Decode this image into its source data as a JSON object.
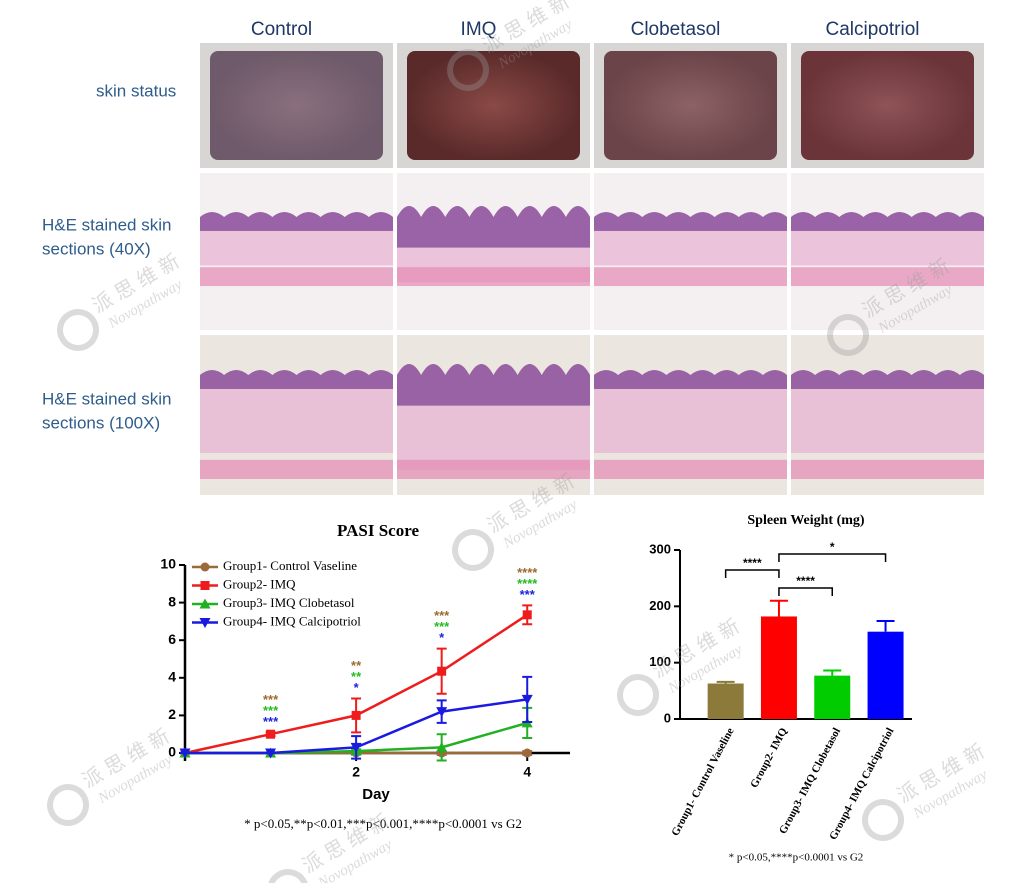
{
  "panels": {
    "columns": [
      "Control",
      "IMQ",
      "Clobetasol",
      "Calcipotriol"
    ],
    "rows": [
      [
        "skin status"
      ],
      [
        "H&E stained skin",
        "sections (40X)"
      ],
      [
        "H&E stained skin",
        "sections (100X)"
      ]
    ]
  },
  "watermark": {
    "cn": "派 思 维 新",
    "en": "Novopathway"
  },
  "chart_data": [
    {
      "type": "line",
      "title": "PASI Score",
      "x_label": "Day",
      "x": [
        0,
        1,
        2,
        3,
        4
      ],
      "xlim": [
        0,
        4.5
      ],
      "xticks": [
        2,
        4
      ],
      "ylim": [
        0,
        10
      ],
      "yticks": [
        0,
        2,
        4,
        6,
        8,
        10
      ],
      "series": [
        {
          "name": "Group1- Control Vaseline",
          "color": "#9c6a3a",
          "marker": "circle",
          "values": [
            0,
            0,
            0,
            0,
            0
          ],
          "errors": [
            0,
            0,
            0.05,
            0.1,
            0.1
          ]
        },
        {
          "name": "Group2- IMQ",
          "color": "#ee1c1c",
          "marker": "square",
          "values": [
            0,
            1.0,
            2.0,
            4.35,
            7.35
          ],
          "errors": [
            0,
            0.1,
            0.9,
            1.2,
            0.5
          ]
        },
        {
          "name": "Group3- IMQ Clobetasol",
          "color": "#22b022",
          "marker": "triangle-up",
          "values": [
            0,
            0,
            0.1,
            0.3,
            1.6
          ],
          "errors": [
            0,
            0,
            0.1,
            0.7,
            0.8
          ]
        },
        {
          "name": "Group4- IMQ  Calcipotriol",
          "color": "#1a1ae0",
          "marker": "triangle-down",
          "values": [
            0,
            0,
            0.3,
            2.2,
            2.85
          ],
          "errors": [
            0,
            0,
            0.6,
            0.6,
            1.2
          ]
        }
      ],
      "annotations": [
        {
          "x": 1,
          "labels": [
            {
              "text": "***",
              "color": "#9c6a2e"
            },
            {
              "text": "***",
              "color": "#22bb22"
            },
            {
              "text": "***",
              "color": "#2222dd"
            }
          ]
        },
        {
          "x": 2,
          "labels": [
            {
              "text": "**",
              "color": "#9c6a2e"
            },
            {
              "text": "**",
              "color": "#22bb22"
            },
            {
              "text": "*",
              "color": "#2222dd"
            }
          ]
        },
        {
          "x": 3,
          "labels": [
            {
              "text": "***",
              "color": "#9c6a2e"
            },
            {
              "text": "***",
              "color": "#22bb22"
            },
            {
              "text": "*",
              "color": "#2222dd"
            }
          ]
        },
        {
          "x": 4,
          "labels": [
            {
              "text": "****",
              "color": "#9c6a2e"
            },
            {
              "text": "****",
              "color": "#22bb22"
            },
            {
              "text": "***",
              "color": "#2222dd"
            }
          ]
        }
      ],
      "footnote": "* p<0.05,**p<0.01,***p<0.001,****p<0.0001 vs G2"
    },
    {
      "type": "bar",
      "title": "Spleen Weight (mg)",
      "categories": [
        "Group1- Control Vaseline",
        "Group2- IMQ",
        "Group3- IMQ Clobetasol",
        "Group4- IMQ Calcipotriol"
      ],
      "values": [
        63,
        182,
        77,
        155
      ],
      "errors": [
        3,
        28,
        9,
        19
      ],
      "colors": [
        "#8b7a3a",
        "#ff0000",
        "#00cc00",
        "#0000ff"
      ],
      "ylim": [
        0,
        300
      ],
      "yticks": [
        0,
        100,
        200,
        300
      ],
      "comparisons": [
        {
          "from": 0,
          "to": 1,
          "label": "****"
        },
        {
          "from": 1,
          "to": 2,
          "label": "****"
        },
        {
          "from": 1,
          "to": 3,
          "label": "*"
        }
      ],
      "footnote": "* p<0.05,****p<0.0001 vs G2"
    }
  ]
}
